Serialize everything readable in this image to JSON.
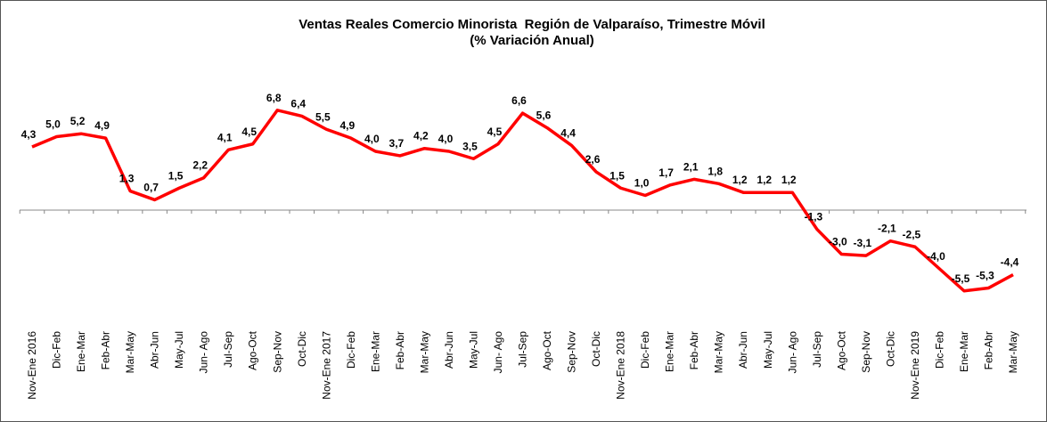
{
  "chart_data": {
    "type": "line",
    "title": "Ventas Reales Comercio Minorista  Región de Valparaíso, Trimestre Móvil",
    "subtitle": "(% Variación Anual)",
    "categories": [
      "Nov-Ene 2016",
      "Dic-Feb",
      "Ene-Mar",
      "Feb-Abr",
      "Mar-May",
      "Abr-Jun",
      "May-Jul",
      "Jun- Ago",
      "Jul-Sep",
      "Ago-Oct",
      "Sep-Nov",
      "Oct-Dic",
      "Nov-Ene 2017",
      "Dic-Feb",
      "Ene-Mar",
      "Feb-Abr",
      "Mar-May",
      "Abr-Jun",
      "May-Jul",
      "Jun- Ago",
      "Jul-Sep",
      "Ago-Oct",
      "Sep-Nov",
      "Oct-Dic",
      "Nov-Ene 2018",
      "Dic-Feb",
      "Ene-Mar",
      "Feb-Abr",
      "Mar-May",
      "Abr-Jun",
      "May-Jul",
      "Jun- Ago",
      "Jul-Sep",
      "Ago-Oct",
      "Sep-Nov",
      "Oct-Dic",
      "Nov-Ene 2019",
      "Dic-Feb",
      "Ene-Mar",
      "Feb-Abr",
      "Mar-May"
    ],
    "values": [
      4.3,
      5.0,
      5.2,
      4.9,
      1.3,
      0.7,
      1.5,
      2.2,
      4.1,
      4.5,
      6.8,
      6.4,
      5.5,
      4.9,
      4.0,
      3.7,
      4.2,
      4.0,
      3.5,
      4.5,
      6.6,
      5.6,
      4.4,
      2.6,
      1.5,
      1.0,
      1.7,
      2.1,
      1.8,
      1.2,
      1.2,
      1.2,
      -1.3,
      -3.0,
      -3.1,
      -2.1,
      -2.5,
      -4.0,
      -5.5,
      -5.3,
      -4.4
    ],
    "value_labels": [
      "4,3",
      "5,0",
      "5,2",
      "4,9",
      "1,3",
      "0,7",
      "1,5",
      "2,2",
      "4,1",
      "4,5",
      "6,8",
      "6,4",
      "5,5",
      "4,9",
      "4,0",
      "3,7",
      "4,2",
      "4,0",
      "3,5",
      "4,5",
      "6,6",
      "5,6",
      "4,4",
      "2,6",
      "1,5",
      "1,0",
      "1,7",
      "2,1",
      "1,8",
      "1,2",
      "1,2",
      "1,2",
      "-1,3",
      "-3,0",
      "-3,1",
      "-2,1",
      "-2,5",
      "-4,0",
      "-5,5",
      "-5,3",
      "-4,4"
    ],
    "color": "#ff0000",
    "ylim": [
      -8,
      9
    ]
  }
}
